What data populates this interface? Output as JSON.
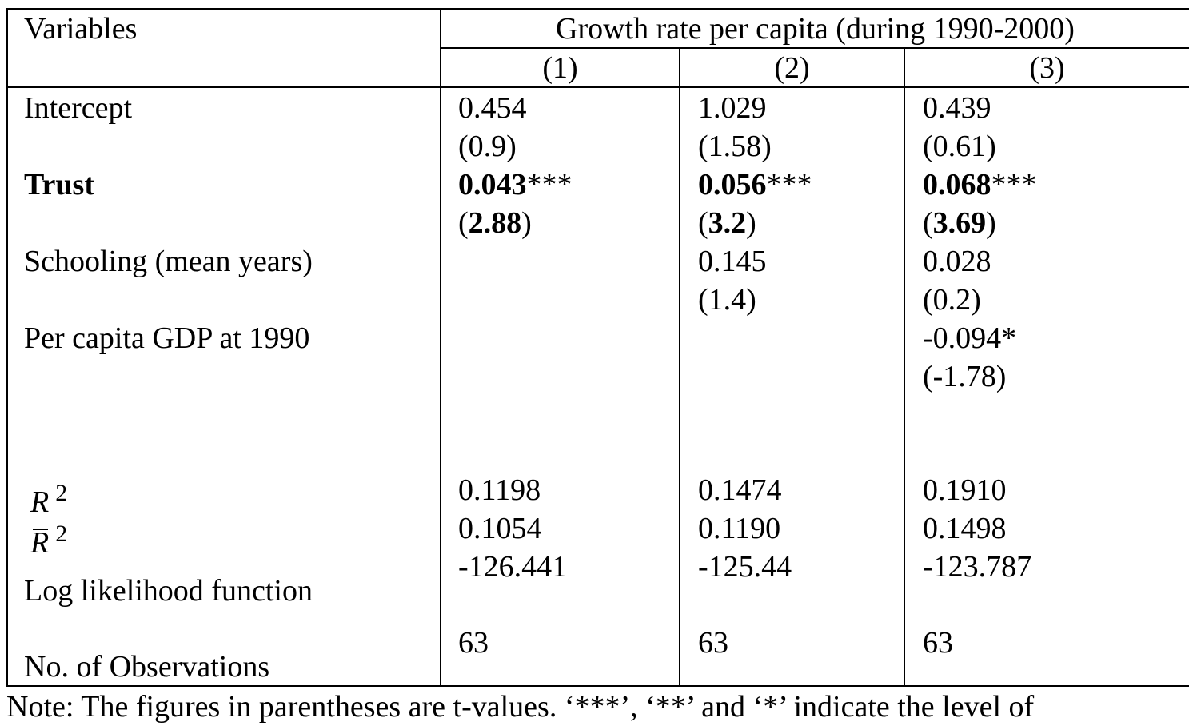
{
  "header": {
    "variables_label": "Variables",
    "dependent_label": "Growth rate per capita (during 1990-2000)",
    "columns": [
      "(1)",
      "(2)",
      "(3)"
    ]
  },
  "rows": {
    "intercept": {
      "label": "Intercept",
      "coef": [
        "0.454",
        "1.029",
        "0.439"
      ],
      "tval": [
        "(0.9)",
        "(1.58)",
        "(0.61)"
      ]
    },
    "trust": {
      "label": "Trust",
      "coef": [
        "0.043",
        "0.056",
        "0.068"
      ],
      "stars": [
        "***",
        "***",
        "***"
      ],
      "tval_open": "(",
      "tval": [
        "2.88",
        "3.2",
        "3.69"
      ],
      "tval_close": ")"
    },
    "schooling": {
      "label": "Schooling (mean years)",
      "coef": [
        "",
        "0.145",
        "0.028"
      ],
      "tval": [
        "",
        "(1.4)",
        "(0.2)"
      ]
    },
    "gdp": {
      "label": "Per capita GDP at 1990",
      "coef": [
        "",
        "",
        "-0.094*"
      ],
      "tval": [
        "",
        "",
        "(-1.78)"
      ]
    }
  },
  "stats": {
    "r2": {
      "symbol": "R",
      "exponent": "2",
      "values": [
        "0.1198",
        "0.1474",
        "0.1910"
      ]
    },
    "adj_r2": {
      "symbol": "R",
      "exponent": "2",
      "values": [
        "0.1054",
        "0.1190",
        "0.1498"
      ]
    },
    "loglik": {
      "label": "Log likelihood function",
      "values": [
        "-126.441",
        "-125.44",
        "-123.787"
      ]
    },
    "nobs": {
      "label": "No. of Observations",
      "values": [
        "63",
        "63",
        "63"
      ]
    }
  },
  "note": "Note: The figures in parentheses are t-values. ‘***’, ‘**’ and ‘*’ indicate the level of"
}
